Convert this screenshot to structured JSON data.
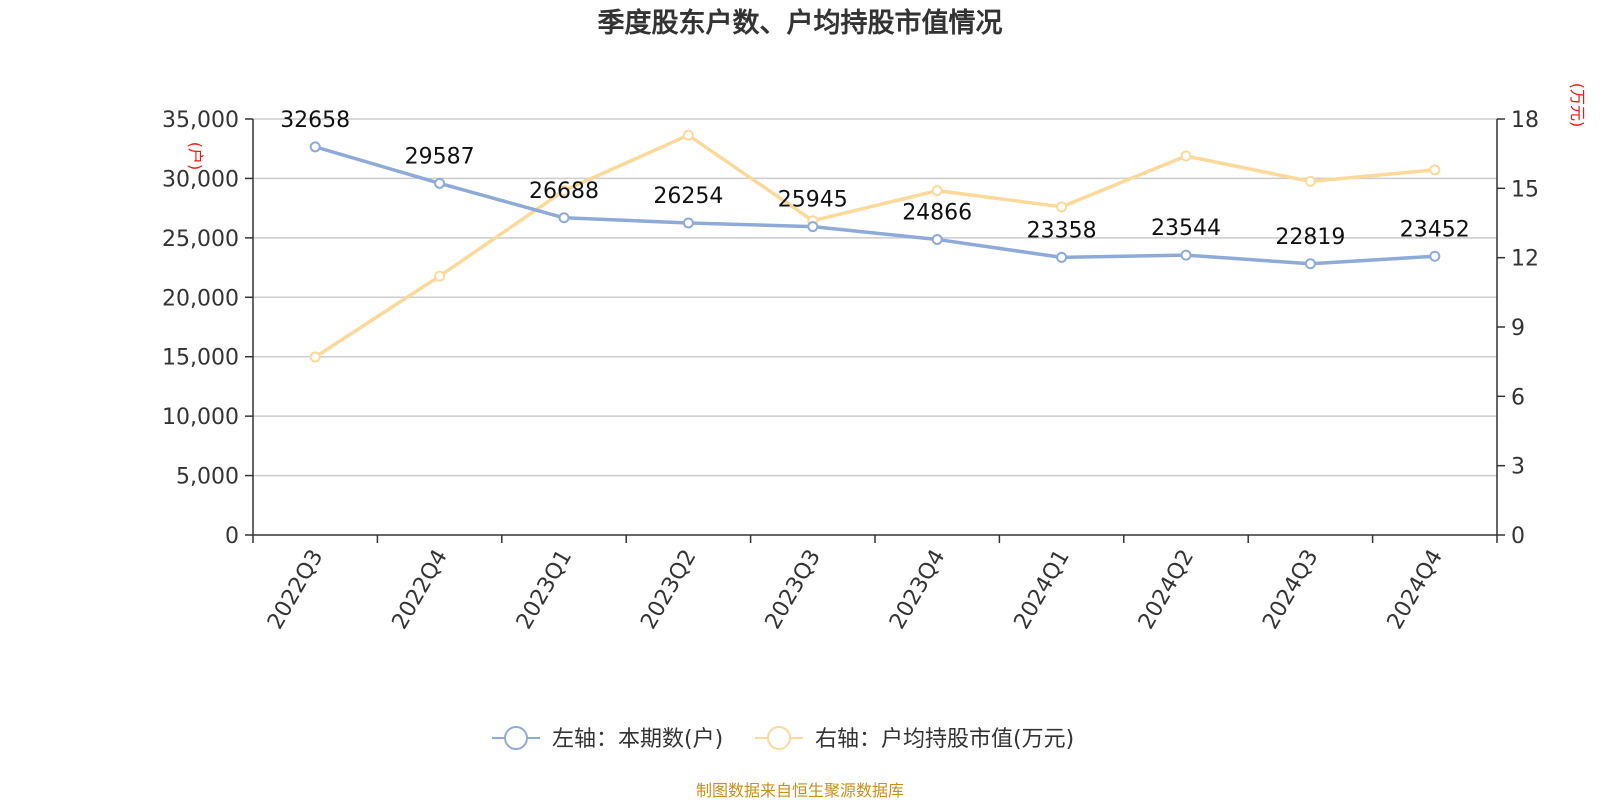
{
  "chart_data": {
    "type": "line",
    "title": "季度股东户数、户均持股市值情况",
    "categories": [
      "2022Q3",
      "2022Q4",
      "2023Q1",
      "2023Q2",
      "2023Q3",
      "2023Q4",
      "2024Q1",
      "2024Q2",
      "2024Q3",
      "2024Q4"
    ],
    "series": [
      {
        "name": "左轴：本期数(户)",
        "axis": "left",
        "color": "#8eaad8",
        "values": [
          32658,
          29587,
          26688,
          26254,
          25945,
          24866,
          23358,
          23544,
          22819,
          23452
        ],
        "data_labels": [
          "32658",
          "29587",
          "26688",
          "26254",
          "25945",
          "24866",
          "23358",
          "23544",
          "22819",
          "23452"
        ]
      },
      {
        "name": "右轴：户均持股市值(万元)",
        "axis": "right",
        "color": "#fad99a",
        "values": [
          7.7,
          11.2,
          14.9,
          17.3,
          13.6,
          14.9,
          14.2,
          16.4,
          15.3,
          15.8
        ]
      }
    ],
    "left_axis": {
      "unit": "(户)",
      "ylim": [
        0,
        35000
      ],
      "ticks": [
        0,
        5000,
        10000,
        15000,
        20000,
        25000,
        30000,
        35000
      ],
      "tick_labels": [
        "0",
        "5,000",
        "10,000",
        "15,000",
        "20,000",
        "25,000",
        "30,000",
        "35,000"
      ]
    },
    "right_axis": {
      "unit": "(万元)",
      "ylim": [
        0,
        18
      ],
      "ticks": [
        0,
        3,
        6,
        9,
        12,
        15,
        18
      ],
      "tick_labels": [
        "0",
        "3",
        "6",
        "9",
        "12",
        "15",
        "18"
      ]
    },
    "grid": true,
    "legend_position": "bottom-center"
  },
  "source": "制图数据来自恒生聚源数据库"
}
